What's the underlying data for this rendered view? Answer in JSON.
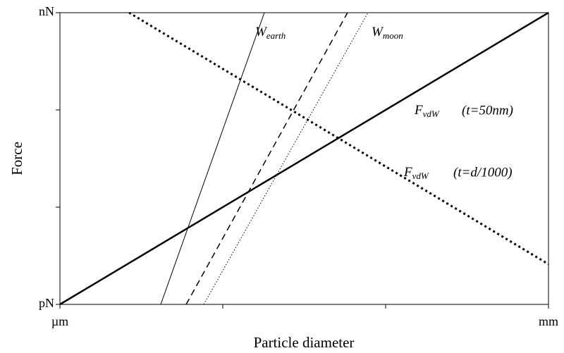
{
  "chart_data": {
    "type": "line",
    "xlabel": "Particle diameter",
    "ylabel": "Force",
    "xscale": "log",
    "yscale": "log",
    "xlim": [
      1,
      1000
    ],
    "ylim": [
      1,
      1000
    ],
    "xticks": [
      {
        "value": 1,
        "label": "µm"
      },
      {
        "value": 10,
        "label": null
      },
      {
        "value": 100,
        "label": null
      },
      {
        "value": 1000,
        "label": "mm"
      }
    ],
    "yticks": [
      {
        "value": 1,
        "label": "pN"
      },
      {
        "value": 10,
        "label": null
      },
      {
        "value": 100,
        "label": null
      },
      {
        "value": 1000,
        "label": "nN"
      }
    ],
    "series": [
      {
        "color": "#000000",
        "linestyle": "solid",
        "linewidth": 2.5,
        "x": [
          1,
          1000
        ],
        "values": [
          1,
          1000
        ]
      },
      {
        "color": "#000000",
        "linestyle": "dotted",
        "linewidth": 3,
        "x": [
          2.66,
          1000
        ],
        "values": [
          1000,
          2.59
        ]
      },
      {
        "color": "#000000",
        "linestyle": "solid",
        "linewidth": 1,
        "x": [
          4.16,
          18.0
        ],
        "values": [
          1,
          1000
        ]
      },
      {
        "color": "#000000",
        "linestyle": "dashed",
        "linewidth": 1.5,
        "x": [
          5.96,
          58.3
        ],
        "values": [
          1,
          1000
        ]
      },
      {
        "color": "#000000",
        "linestyle": "dotted",
        "linewidth": 1,
        "x": [
          7.64,
          77.9
        ],
        "values": [
          1,
          1000
        ]
      }
    ],
    "annotations": [
      {
        "text": "W",
        "sub": "earth"
      },
      {
        "text": "W",
        "sub": "moon"
      },
      {
        "text": "F",
        "sub": "vdW",
        "suffix": "(t=50nm)"
      },
      {
        "text": "F",
        "sub": "vdW",
        "suffix": "(t=d/1000)"
      }
    ]
  }
}
